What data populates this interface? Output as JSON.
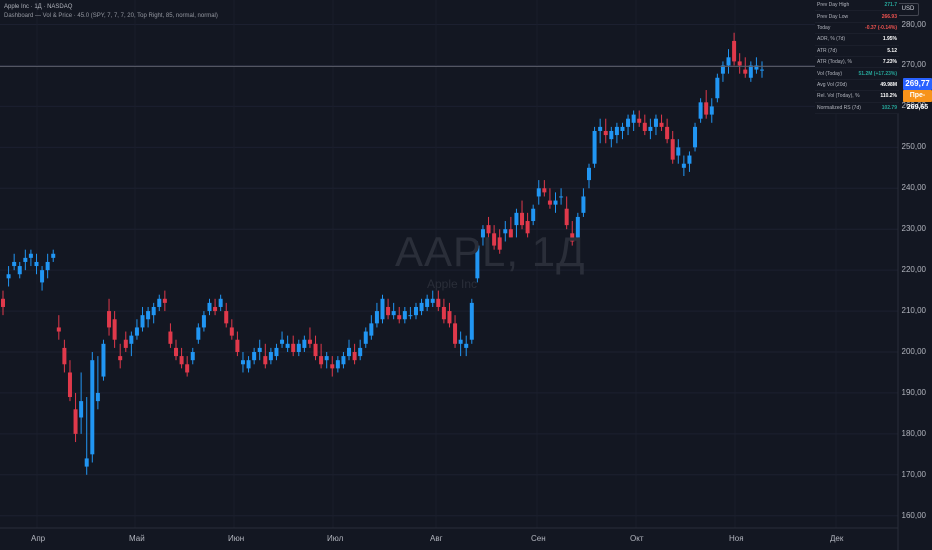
{
  "header": {
    "title": "Apple Inc · 1Д · NASDAQ",
    "indicator": "Dashboard — Vol & Price · 45.0 (SPY, 7, 7, 7, 20, Top Right, 85, normal, normal)"
  },
  "watermark": {
    "ticker": "AAPL, 1Д",
    "name": "Apple Inc"
  },
  "currency_button": "USD",
  "price_axis": {
    "ticks": [
      "280,00",
      "270,00",
      "260,00",
      "250,00",
      "240,00",
      "230,00",
      "220,00",
      "210,00",
      "200,00",
      "190,00",
      "180,00",
      "170,00",
      "160,00"
    ],
    "last_price": "269,77",
    "pre_label": "Пре-",
    "pre_price": "269,65"
  },
  "time_axis": {
    "ticks": [
      "Апр",
      "Май",
      "Июн",
      "Июл",
      "Авг",
      "Сен",
      "Окт",
      "Ноя",
      "Дек"
    ]
  },
  "dashboard": {
    "rows": [
      {
        "label": "Prev Day High",
        "value": "271.7",
        "color": "#26a69a"
      },
      {
        "label": "Prev Day Low",
        "value": "266.93",
        "color": "#ef5350"
      },
      {
        "label": "Today",
        "value": "-0.37 (-0.14%)",
        "color": "#ef5350"
      },
      {
        "label": "ADR, % (7d)",
        "value": "1.95%",
        "color": "#ffffff"
      },
      {
        "label": "ATR (7d)",
        "value": "5.12",
        "color": "#ffffff"
      },
      {
        "label": "ATR (Today), %",
        "value": "7.23%",
        "color": "#ffffff"
      },
      {
        "label": "Vol (Today)",
        "value": "51.2M (+17.23%)",
        "color": "#26a69a"
      },
      {
        "label": "Avg Vol (20d)",
        "value": "49.98M",
        "color": "#ffffff"
      },
      {
        "label": "Rel. Vol (Today), %",
        "value": "110.2%",
        "color": "#ffffff"
      },
      {
        "label": "Normalized RS (7d)",
        "value": "102.79",
        "color": "#26a69a"
      }
    ]
  },
  "colors": {
    "up": "#2196f3",
    "down": "#e0394b",
    "background": "#131722"
  },
  "chart_data": {
    "type": "candlestick",
    "x_range": [
      "Мар",
      "Дек"
    ],
    "ylim": [
      157,
      286
    ],
    "last_price": 269.77,
    "candles": [
      [
        213,
        215,
        209,
        211
      ],
      [
        218,
        221,
        216,
        219
      ],
      [
        221,
        224,
        220,
        222
      ],
      [
        219,
        222,
        218,
        221
      ],
      [
        222,
        225,
        220,
        223
      ],
      [
        223,
        225,
        221,
        224
      ],
      [
        221,
        224,
        219,
        222
      ],
      [
        217,
        221,
        215,
        220
      ],
      [
        220,
        224,
        218,
        222
      ],
      [
        223,
        225,
        222,
        224
      ],
      [
        206,
        209,
        203,
        205
      ],
      [
        201,
        203,
        195,
        197
      ],
      [
        195,
        198,
        188,
        189
      ],
      [
        186,
        190,
        178,
        180
      ],
      [
        184,
        195,
        180,
        188
      ],
      [
        172,
        189,
        170,
        174
      ],
      [
        175,
        200,
        173,
        198
      ],
      [
        188,
        199,
        186,
        190
      ],
      [
        194,
        203,
        193,
        202
      ],
      [
        210,
        213,
        204,
        206
      ],
      [
        208,
        210,
        201,
        203
      ],
      [
        199,
        202,
        196,
        198
      ],
      [
        203,
        205,
        200,
        201
      ],
      [
        202,
        205,
        199,
        204
      ],
      [
        204,
        208,
        203,
        206
      ],
      [
        206,
        211,
        205,
        209
      ],
      [
        208,
        211,
        206,
        210
      ],
      [
        209,
        212,
        207,
        211
      ],
      [
        211,
        214,
        210,
        213
      ],
      [
        213,
        215,
        210,
        212
      ],
      [
        205,
        207,
        201,
        202
      ],
      [
        201,
        203,
        198,
        199
      ],
      [
        199,
        201,
        196,
        197
      ],
      [
        197,
        199,
        194,
        195
      ],
      [
        198,
        201,
        197,
        200
      ],
      [
        203,
        207,
        202,
        206
      ],
      [
        206,
        210,
        205,
        209
      ],
      [
        210,
        213,
        209,
        212
      ],
      [
        211,
        213,
        209,
        210
      ],
      [
        211,
        214,
        210,
        213
      ],
      [
        210,
        212,
        206,
        207
      ],
      [
        206,
        208,
        203,
        204
      ],
      [
        203,
        205,
        199,
        200
      ],
      [
        197,
        200,
        195,
        198
      ],
      [
        196,
        199,
        195,
        198
      ],
      [
        198,
        201,
        197,
        200
      ],
      [
        200,
        203,
        198,
        201
      ],
      [
        199,
        202,
        196,
        197
      ],
      [
        198,
        201,
        197,
        200
      ],
      [
        199,
        202,
        198,
        201
      ],
      [
        202,
        205,
        201,
        203
      ],
      [
        201,
        204,
        200,
        202
      ],
      [
        202,
        204,
        199,
        200
      ],
      [
        200,
        203,
        199,
        202
      ],
      [
        201,
        204,
        200,
        203
      ],
      [
        203,
        206,
        201,
        202
      ],
      [
        202,
        204,
        198,
        199
      ],
      [
        199,
        202,
        196,
        197
      ],
      [
        198,
        200,
        196,
        199
      ],
      [
        197,
        199,
        194,
        196
      ],
      [
        196,
        199,
        195,
        198
      ],
      [
        197,
        200,
        196,
        199
      ],
      [
        199,
        203,
        198,
        201
      ],
      [
        200,
        202,
        197,
        198
      ],
      [
        199,
        203,
        198,
        201
      ],
      [
        202,
        206,
        201,
        205
      ],
      [
        204,
        209,
        203,
        207
      ],
      [
        207,
        212,
        206,
        210
      ],
      [
        208,
        214,
        207,
        213
      ],
      [
        211,
        213,
        208,
        209
      ],
      [
        209,
        212,
        208,
        210
      ],
      [
        209,
        211,
        207,
        208
      ],
      [
        208,
        211,
        207,
        210
      ],
      [
        209,
        211,
        208,
        209
      ],
      [
        209,
        212,
        208,
        211
      ],
      [
        210,
        213,
        209,
        212
      ],
      [
        211,
        214,
        210,
        213
      ],
      [
        212,
        215,
        211,
        213
      ],
      [
        213,
        215,
        210,
        211
      ],
      [
        211,
        213,
        207,
        208
      ],
      [
        210,
        212,
        206,
        207
      ],
      [
        207,
        209,
        201,
        202
      ],
      [
        202,
        205,
        199,
        203
      ],
      [
        201,
        204,
        199,
        202
      ],
      [
        203,
        213,
        202,
        212
      ],
      [
        218,
        227,
        217,
        226
      ],
      [
        228,
        231,
        226,
        230
      ],
      [
        231,
        233,
        228,
        229
      ],
      [
        229,
        231,
        225,
        226
      ],
      [
        228,
        230,
        224,
        225
      ],
      [
        229,
        232,
        227,
        230
      ],
      [
        230,
        233,
        228,
        228
      ],
      [
        231,
        235,
        228,
        234
      ],
      [
        234,
        237,
        230,
        231
      ],
      [
        232,
        234,
        228,
        229
      ],
      [
        232,
        236,
        231,
        235
      ],
      [
        238,
        242,
        236,
        240
      ],
      [
        240,
        242,
        238,
        239
      ],
      [
        237,
        240,
        235,
        236
      ],
      [
        236,
        239,
        234,
        237
      ],
      [
        238,
        240,
        236,
        238
      ],
      [
        235,
        238,
        230,
        231
      ],
      [
        229,
        232,
        226,
        227
      ],
      [
        228,
        234,
        227,
        233
      ],
      [
        234,
        240,
        233,
        238
      ],
      [
        242,
        246,
        240,
        245
      ],
      [
        246,
        255,
        245,
        254
      ],
      [
        254,
        257,
        251,
        255
      ],
      [
        254,
        257,
        251,
        253
      ],
      [
        252,
        255,
        250,
        254
      ],
      [
        253,
        256,
        251,
        255
      ],
      [
        254,
        256,
        252,
        255
      ],
      [
        255,
        258,
        253,
        257
      ],
      [
        256,
        259,
        254,
        258
      ],
      [
        257,
        259,
        255,
        256
      ],
      [
        256,
        258,
        253,
        254
      ],
      [
        254,
        257,
        252,
        255
      ],
      [
        255,
        258,
        253,
        257
      ],
      [
        256,
        258,
        254,
        255
      ],
      [
        255,
        257,
        251,
        252
      ],
      [
        252,
        254,
        246,
        247
      ],
      [
        248,
        252,
        246,
        250
      ],
      [
        245,
        248,
        243,
        246
      ],
      [
        246,
        249,
        244,
        248
      ],
      [
        250,
        256,
        249,
        255
      ],
      [
        257,
        262,
        256,
        261
      ],
      [
        261,
        264,
        257,
        258
      ],
      [
        258,
        262,
        256,
        260
      ],
      [
        262,
        268,
        261,
        267
      ],
      [
        268,
        271,
        266,
        270
      ],
      [
        270,
        274,
        268,
        272
      ],
      [
        276,
        278,
        270,
        271
      ],
      [
        271,
        273,
        268,
        270
      ],
      [
        269,
        272,
        267,
        268
      ],
      [
        267,
        271,
        266,
        270
      ],
      [
        269,
        272,
        268,
        270
      ],
      [
        269,
        271,
        267,
        269
      ]
    ]
  }
}
